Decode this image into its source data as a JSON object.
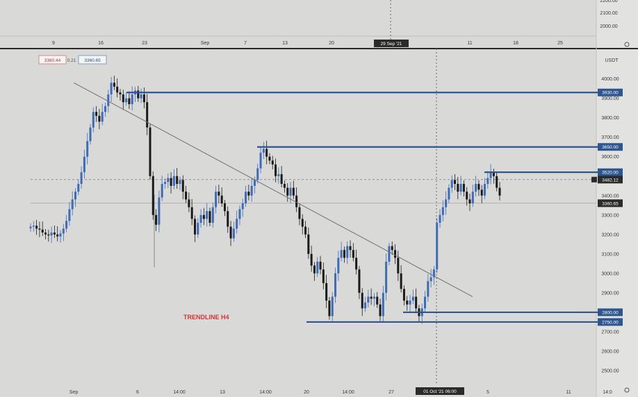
{
  "chart_data": {
    "type": "candlestick",
    "quote_currency": "USDT",
    "ohlc_header": {
      "open": "3360.44",
      "change": "0.21",
      "close": "3360.65"
    },
    "y_axis": {
      "range": [
        2450,
        4120
      ],
      "ticks": [
        "4000.00",
        "3900.00",
        "3800.00",
        "3700.00",
        "3600.00",
        "3400.00",
        "3300.00",
        "3200.00",
        "3100.00",
        "3000.00",
        "2900.00",
        "2800.00",
        "2700.00",
        "2600.00",
        "2500.00"
      ],
      "upper_ticks": [
        "2200.00",
        "2100.00",
        "2000.00"
      ]
    },
    "x_axis_bottom": {
      "ticks": [
        "Sep",
        "6",
        "14:00",
        "13",
        "14:00",
        "20",
        "14:00",
        "27",
        "5",
        "11",
        "14:0"
      ],
      "crosshair_label": "01 Oct '21  06:00"
    },
    "x_axis_top": {
      "ticks": [
        "9",
        "16",
        "23",
        "Sep",
        "7",
        "13",
        "20",
        "11",
        "18",
        "25"
      ],
      "crosshair_label": "29 Sep '21"
    },
    "levels": [
      {
        "price": 3930,
        "label": "3930.00"
      },
      {
        "price": 3650,
        "label": "3650.00"
      },
      {
        "price": 3520,
        "label": "3520.00"
      },
      {
        "price": 2800,
        "label": "2800.00"
      },
      {
        "price": 2750,
        "label": "2750.00"
      }
    ],
    "current_price": {
      "price": 3482.12,
      "label": "3482.12"
    },
    "secondary_price": {
      "price": 3360.65,
      "label": "3360.65"
    },
    "trendline": {
      "from": {
        "t": 0.085,
        "price": 3980
      },
      "to": {
        "t": 0.87,
        "price": 2880
      }
    },
    "annotation": "TRENDLINE H4",
    "series": [
      3240,
      3245,
      3230,
      3225,
      3210,
      3200,
      3195,
      3210,
      3200,
      3190,
      3205,
      3230,
      3270,
      3330,
      3380,
      3420,
      3460,
      3520,
      3600,
      3680,
      3750,
      3830,
      3810,
      3780,
      3830,
      3860,
      3920,
      3980,
      3960,
      3930,
      3920,
      3880,
      3900,
      3870,
      3920,
      3940,
      3900,
      3920,
      3880,
      3750,
      3500,
      3300,
      3250,
      3390,
      3460,
      3470,
      3490,
      3450,
      3500,
      3460,
      3480,
      3420,
      3380,
      3340,
      3280,
      3200,
      3260,
      3300,
      3280,
      3320,
      3260,
      3340,
      3420,
      3400,
      3360,
      3320,
      3240,
      3180,
      3230,
      3280,
      3330,
      3360,
      3420,
      3400,
      3450,
      3480,
      3540,
      3620,
      3640,
      3600,
      3580,
      3560,
      3500,
      3510,
      3460,
      3440,
      3400,
      3440,
      3400,
      3340,
      3280,
      3240,
      3200,
      3100,
      3040,
      3000,
      3060,
      3020,
      2950,
      2860,
      2780,
      2880,
      3000,
      3080,
      3120,
      3080,
      3140,
      3120,
      3080,
      3020,
      2900,
      2820,
      2850,
      2880,
      2870,
      2880,
      2840,
      2780,
      2900,
      3060,
      3140,
      3120,
      3080,
      3000,
      2920,
      2860,
      2840,
      2860,
      2880,
      2820,
      2780,
      2820,
      2880,
      2960,
      2980,
      3020,
      3260,
      3300,
      3340,
      3380,
      3440,
      3480,
      3460,
      3420,
      3460,
      3420,
      3380,
      3360,
      3420,
      3460,
      3430,
      3400,
      3460,
      3490,
      3520,
      3500,
      3440,
      3400
    ]
  }
}
